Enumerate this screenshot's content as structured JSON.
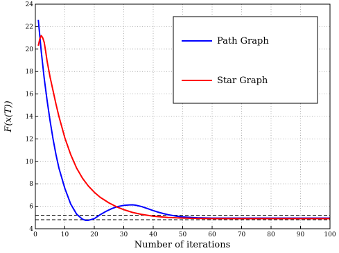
{
  "chart_data": {
    "type": "line",
    "xlabel": "Number of iterations",
    "ylabel": "F(x(T))",
    "xlim": [
      0,
      100
    ],
    "ylim": [
      4,
      24
    ],
    "xticks": [
      0,
      10,
      20,
      30,
      40,
      50,
      60,
      70,
      80,
      90,
      100
    ],
    "yticks": [
      4,
      6,
      8,
      10,
      12,
      14,
      16,
      18,
      20,
      22,
      24
    ],
    "grid": true,
    "legend_position": "top-right",
    "series": [
      {
        "name": "Path Graph",
        "color": "#0000ff",
        "x": [
          1,
          2,
          3,
          4,
          5,
          6,
          7,
          8,
          10,
          12,
          14,
          16,
          17,
          18,
          20,
          22,
          24,
          26,
          28,
          30,
          32,
          33,
          34,
          36,
          38,
          40,
          42,
          45,
          48,
          50,
          55,
          60,
          70,
          80,
          90,
          100
        ],
        "y": [
          22.6,
          19.8,
          17.4,
          15.4,
          13.6,
          12.0,
          10.6,
          9.4,
          7.6,
          6.2,
          5.3,
          4.85,
          4.75,
          4.75,
          4.9,
          5.25,
          5.55,
          5.8,
          5.98,
          6.08,
          6.12,
          6.13,
          6.1,
          5.98,
          5.8,
          5.62,
          5.45,
          5.25,
          5.12,
          5.05,
          4.98,
          4.95,
          4.95,
          4.95,
          4.95,
          4.95
        ]
      },
      {
        "name": "Star Graph",
        "color": "#ff0000",
        "x": [
          1,
          1.5,
          2,
          2.5,
          3,
          3.5,
          4,
          5,
          6,
          7,
          8,
          10,
          12,
          14,
          16,
          18,
          20,
          22,
          25,
          28,
          30,
          33,
          36,
          40,
          45,
          50,
          55,
          60,
          70,
          80,
          90,
          100
        ],
        "y": [
          20.3,
          20.9,
          21.2,
          21.0,
          20.6,
          19.8,
          18.9,
          17.5,
          16.3,
          15.1,
          14.0,
          12.1,
          10.6,
          9.4,
          8.5,
          7.8,
          7.25,
          6.8,
          6.3,
          5.9,
          5.7,
          5.45,
          5.28,
          5.12,
          5.0,
          4.95,
          4.92,
          4.9,
          4.9,
          4.9,
          4.9,
          4.9
        ]
      }
    ],
    "reference_lines": [
      {
        "y": 5.2,
        "style": "dashed",
        "color": "#000000"
      },
      {
        "y": 4.8,
        "style": "dashed",
        "color": "#000000"
      }
    ]
  }
}
